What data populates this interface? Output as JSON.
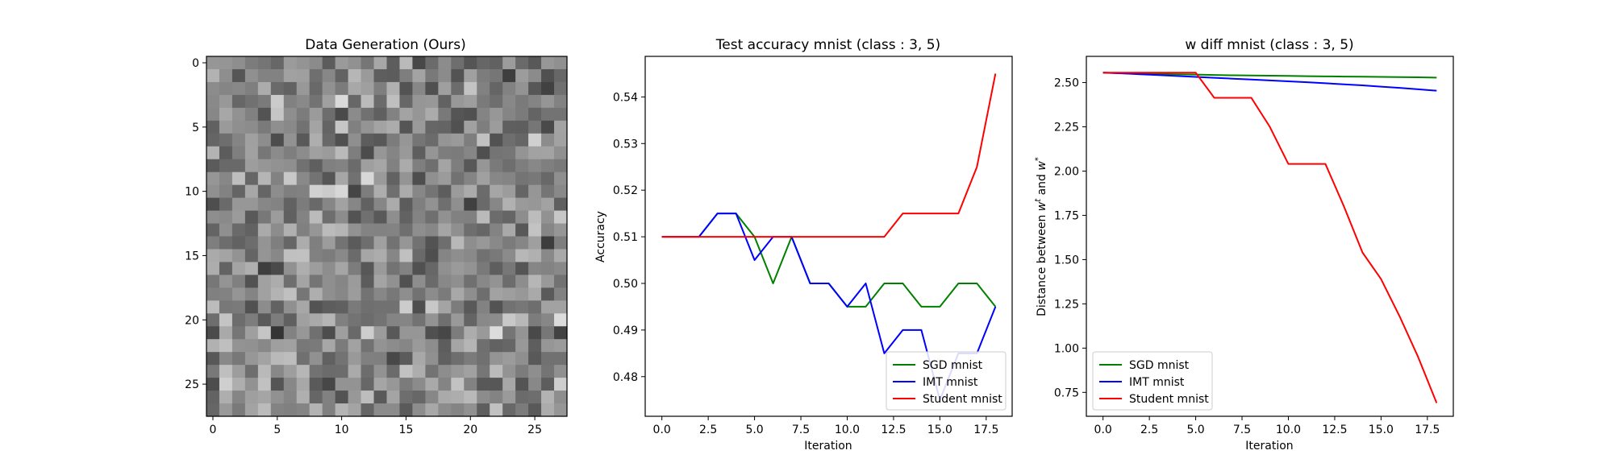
{
  "chart_data": [
    {
      "type": "heatmap",
      "title": "Data Generation (Ours)",
      "xlabel": "",
      "ylabel": "",
      "xlim": [
        -0.5,
        27.5
      ],
      "ylim": [
        27.5,
        -0.5
      ],
      "xticks": [
        0,
        5,
        10,
        15,
        20,
        25
      ],
      "yticks": [
        0,
        5,
        10,
        15,
        20,
        25
      ],
      "size": [
        28,
        28
      ],
      "seed": 20240,
      "colormap": "gray"
    },
    {
      "type": "line",
      "title": "Test accuracy mnist (class : 3, 5)",
      "xlabel": "Iteration",
      "ylabel": "Accuracy",
      "xlim": [
        -0.9,
        18.9
      ],
      "ylim": [
        0.4715,
        0.5487
      ],
      "xticks": [
        0.0,
        2.5,
        5.0,
        7.5,
        10.0,
        12.5,
        15.0,
        17.5
      ],
      "yticks": [
        0.48,
        0.49,
        0.5,
        0.51,
        0.52,
        0.53,
        0.54
      ],
      "legend": "lower-right",
      "x": [
        0,
        1,
        2,
        3,
        4,
        5,
        6,
        7,
        8,
        9,
        10,
        11,
        12,
        13,
        14,
        15,
        16,
        17,
        18
      ],
      "series": [
        {
          "name": "SGD mnist",
          "color": "#008000",
          "values": [
            0.51,
            0.51,
            0.51,
            0.515,
            0.515,
            0.51,
            0.5,
            0.51,
            0.5,
            0.5,
            0.495,
            0.495,
            0.5,
            0.5,
            0.495,
            0.495,
            0.5,
            0.5,
            0.495
          ]
        },
        {
          "name": "IMT mnist",
          "color": "#0000ff",
          "values": [
            0.51,
            0.51,
            0.51,
            0.515,
            0.515,
            0.505,
            0.51,
            0.51,
            0.5,
            0.5,
            0.495,
            0.5,
            0.485,
            0.49,
            0.49,
            0.475,
            0.485,
            0.485,
            0.495
          ]
        },
        {
          "name": "Student mnist",
          "color": "#ff0000",
          "values": [
            0.51,
            0.51,
            0.51,
            0.51,
            0.51,
            0.51,
            0.51,
            0.51,
            0.51,
            0.51,
            0.51,
            0.51,
            0.51,
            0.515,
            0.515,
            0.515,
            0.515,
            0.525,
            0.545
          ]
        }
      ]
    },
    {
      "type": "line",
      "title": "w diff mnist (class : 3, 5)",
      "xlabel": "Iteration",
      "ylabel": "Distance between w^t and w^*",
      "ylabel_parts": {
        "pre": "Distance between ",
        "w": "w",
        "sup_t": "t",
        "mid": " and ",
        "w2": "w",
        "sup_star": "*"
      },
      "xlim": [
        -0.9,
        18.9
      ],
      "ylim": [
        0.615,
        2.648
      ],
      "xticks": [
        0.0,
        2.5,
        5.0,
        7.5,
        10.0,
        12.5,
        15.0,
        17.5
      ],
      "yticks": [
        0.75,
        1.0,
        1.25,
        1.5,
        1.75,
        2.0,
        2.25,
        2.5
      ],
      "legend": "lower-left",
      "x": [
        0,
        1,
        2,
        3,
        4,
        5,
        6,
        7,
        8,
        9,
        10,
        11,
        12,
        13,
        14,
        15,
        16,
        17,
        18
      ],
      "series": [
        {
          "name": "SGD mnist",
          "color": "#008000",
          "values": [
            2.556,
            2.553,
            2.551,
            2.549,
            2.547,
            2.545,
            2.543,
            2.541,
            2.54,
            2.539,
            2.538,
            2.536,
            2.535,
            2.534,
            2.533,
            2.532,
            2.531,
            2.53,
            2.528
          ]
        },
        {
          "name": "IMT mnist",
          "color": "#0000ff",
          "values": [
            2.556,
            2.552,
            2.547,
            2.542,
            2.537,
            2.532,
            2.527,
            2.522,
            2.517,
            2.512,
            2.507,
            2.502,
            2.496,
            2.49,
            2.484,
            2.477,
            2.47,
            2.462,
            2.454
          ]
        },
        {
          "name": "Student mnist",
          "color": "#ff0000",
          "values": [
            2.556,
            2.556,
            2.556,
            2.556,
            2.556,
            2.556,
            2.414,
            2.414,
            2.414,
            2.25,
            2.04,
            2.04,
            2.04,
            1.8,
            1.54,
            1.39,
            1.18,
            0.95,
            0.69
          ]
        }
      ]
    }
  ]
}
